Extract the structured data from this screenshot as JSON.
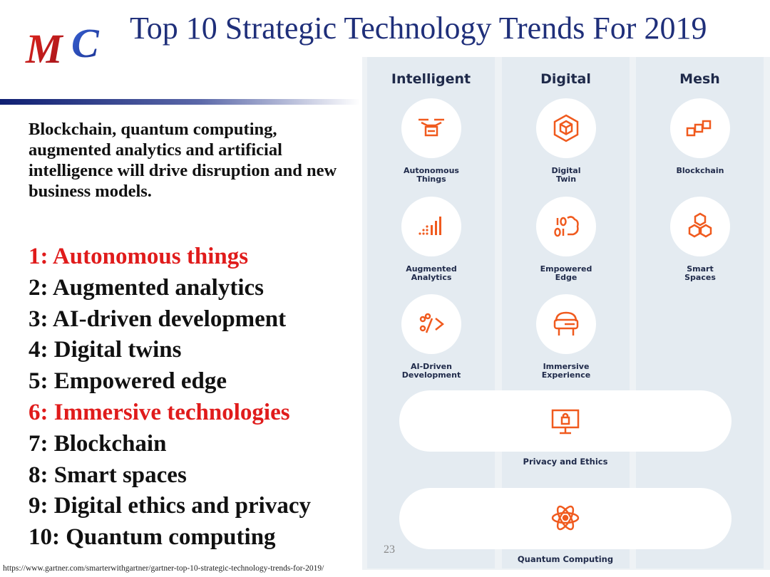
{
  "logo": {
    "text": "MC"
  },
  "title": "Top 10 Strategic Technology Trends For 2019",
  "intro": "Blockchain, quantum computing, augmented analytics and artificial intelligence will drive disruption and new business models.",
  "trends": [
    {
      "label": "1: Autonomous things",
      "highlight": true
    },
    {
      "label": "2: Augmented analytics",
      "highlight": false
    },
    {
      "label": "3: AI-driven development",
      "highlight": false
    },
    {
      "label": "4: Digital twins",
      "highlight": false
    },
    {
      "label": "5: Empowered edge",
      "highlight": false
    },
    {
      "label": "6: Immersive technologies",
      "highlight": true
    },
    {
      "label": "7: Blockchain",
      "highlight": false
    },
    {
      "label": "8: Smart spaces",
      "highlight": false
    },
    {
      "label": "9: Digital ethics and privacy",
      "highlight": false
    },
    {
      "label": "10: Quantum computing",
      "highlight": false
    }
  ],
  "slide_number": "23",
  "source_url": "https://www.gartner.com/smarterwithgartner/gartner-top-10-strategic-technology-trends-for-2019/",
  "infographic": {
    "columns": [
      {
        "heading": "Intelligent",
        "items": [
          {
            "label": "Autonomous\nThings",
            "icon": "drone-icon"
          },
          {
            "label": "Augmented\nAnalytics",
            "icon": "analytics-icon"
          },
          {
            "label": "AI-Driven\nDevelopment",
            "icon": "code-icon"
          }
        ]
      },
      {
        "heading": "Digital",
        "items": [
          {
            "label": "Digital\nTwin",
            "icon": "cube-icon"
          },
          {
            "label": "Empowered\nEdge",
            "icon": "binary-cloud-icon"
          },
          {
            "label": "Immersive\nExperience",
            "icon": "vr-headset-icon"
          }
        ]
      },
      {
        "heading": "Mesh",
        "items": [
          {
            "label": "Blockchain",
            "icon": "blocks-icon"
          },
          {
            "label": "Smart\nSpaces",
            "icon": "hexagons-icon"
          }
        ]
      }
    ],
    "wide": [
      {
        "label": "Privacy and Ethics",
        "icon": "monitor-lock-icon"
      },
      {
        "label": "Quantum Computing",
        "icon": "atom-icon"
      }
    ]
  },
  "colors": {
    "accent": "#f05a1e",
    "highlight": "#e01b1b",
    "title": "#1f2f7a",
    "panel": "#e4ebf1"
  }
}
